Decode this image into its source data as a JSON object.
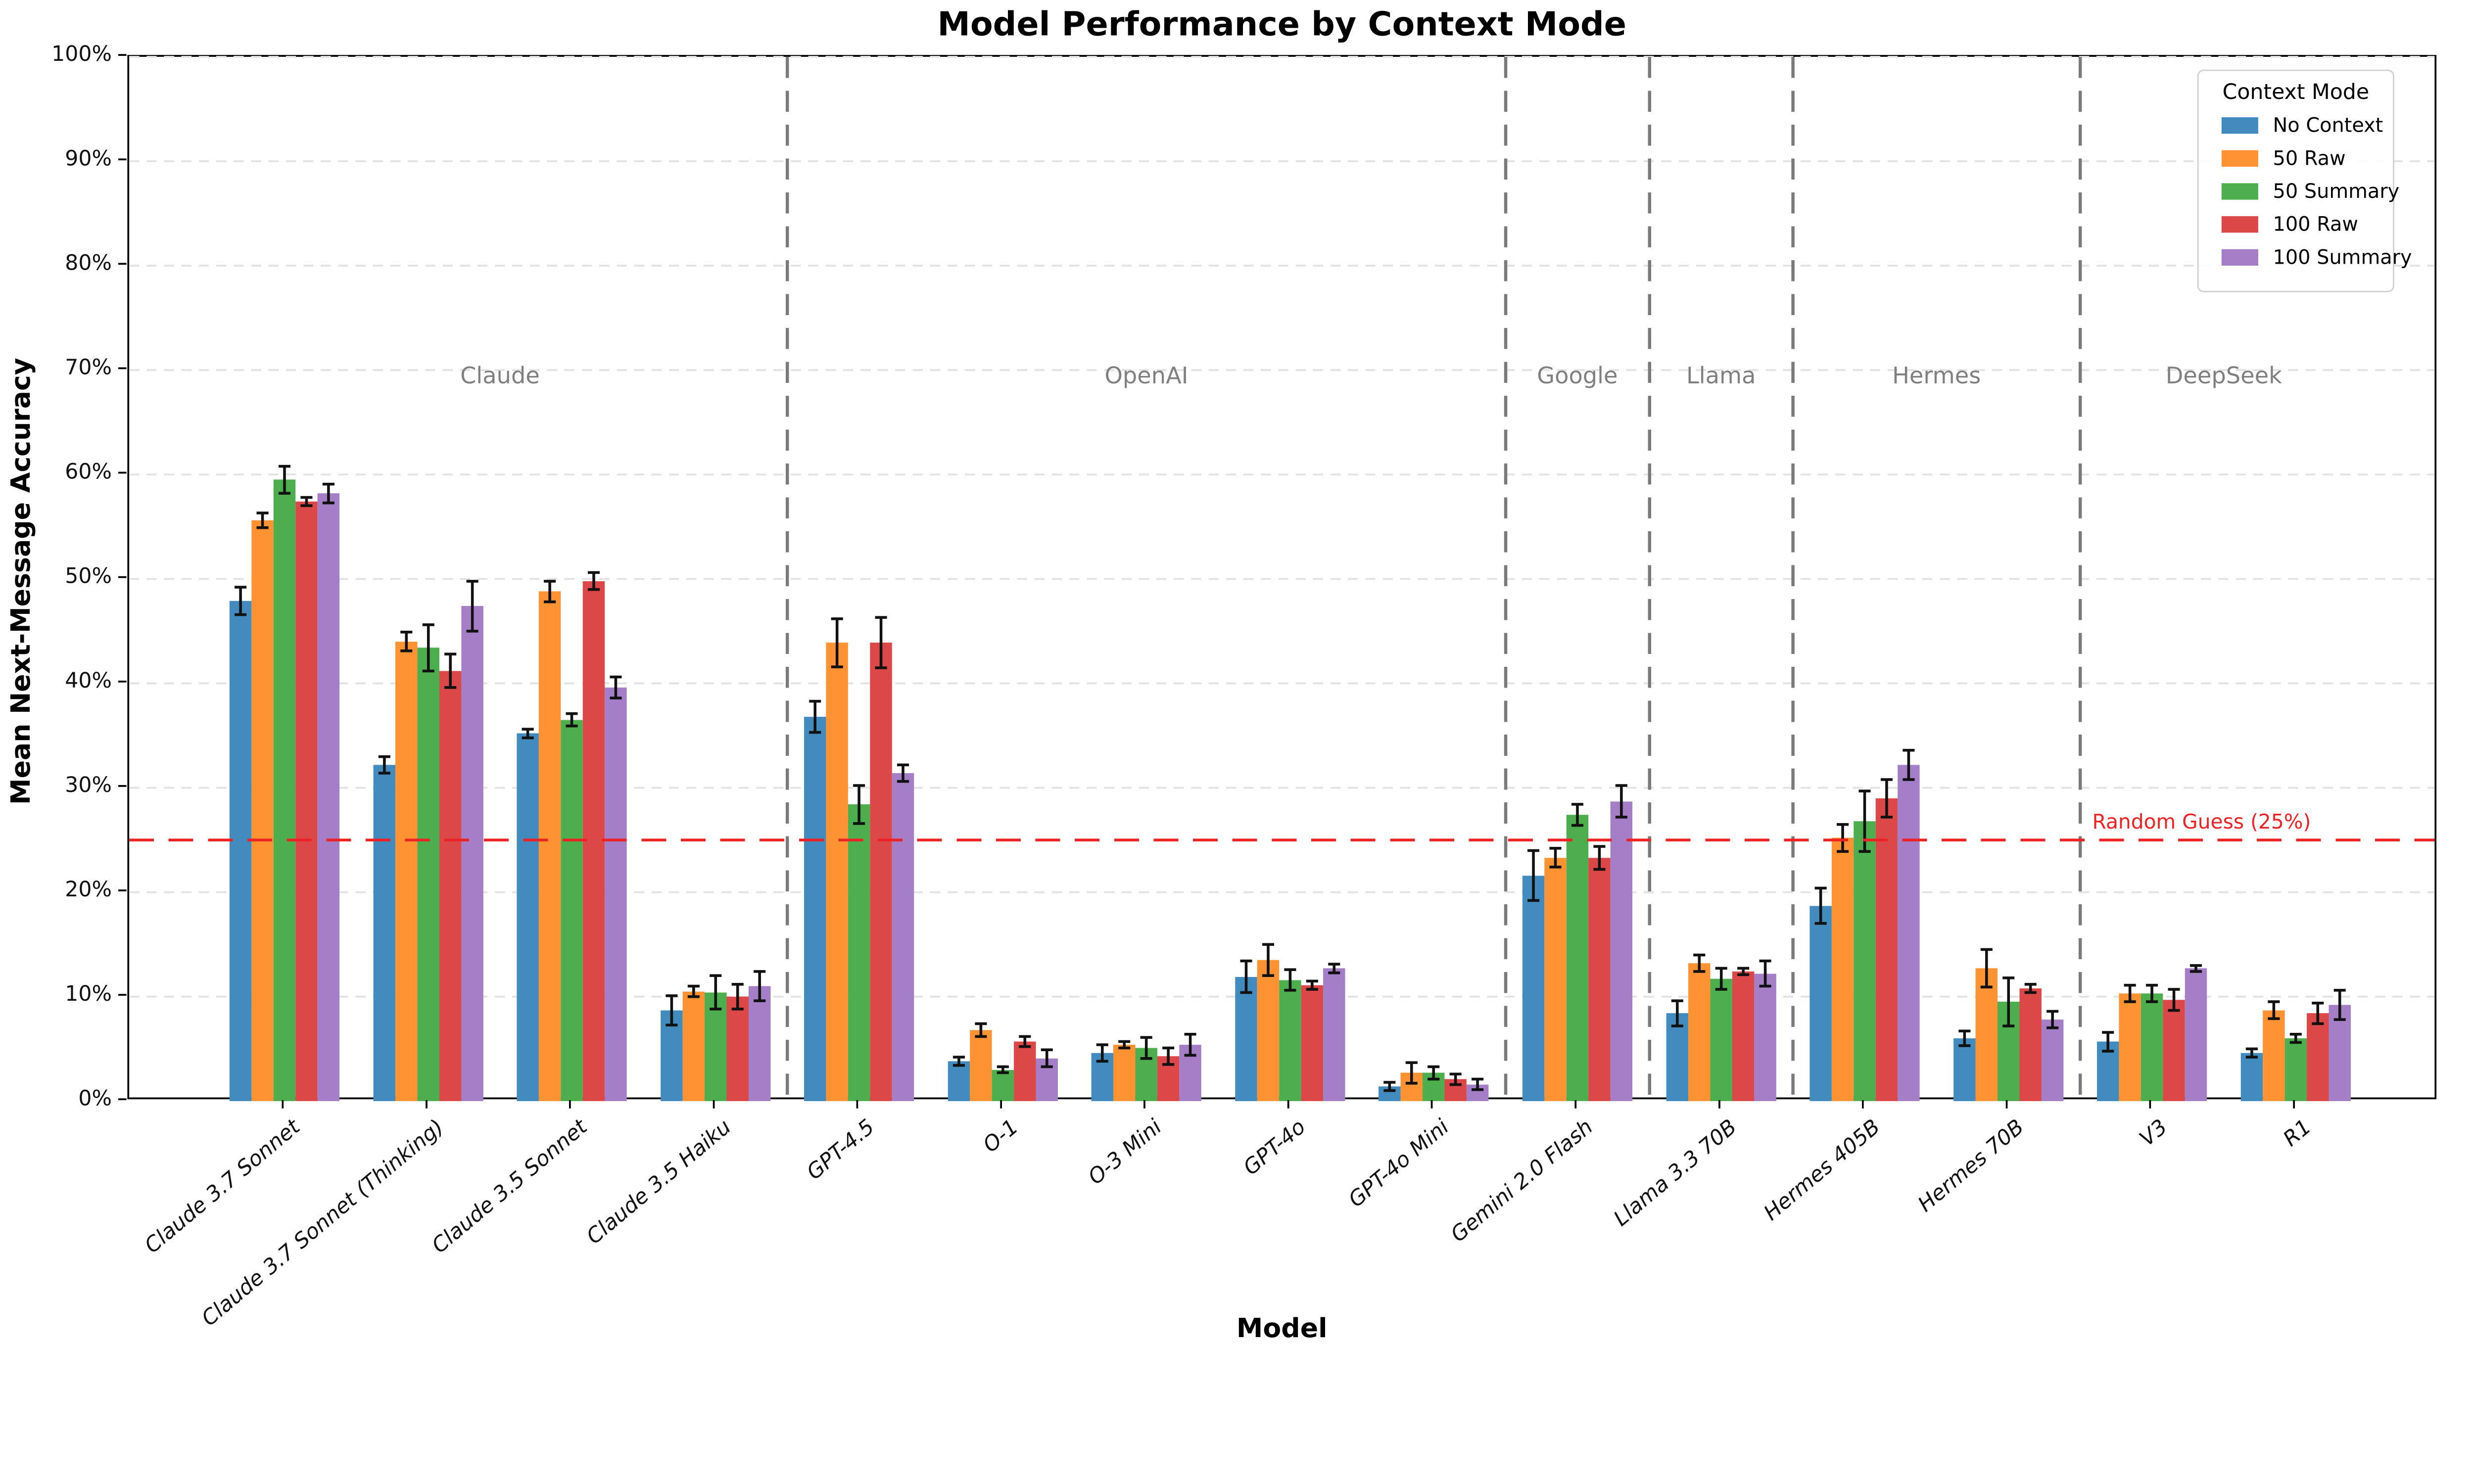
{
  "title": "Model Performance by Context Mode",
  "legend": {
    "title": "Context Mode"
  },
  "axes": {
    "y_label": "Mean Next-Message Accuracy",
    "x_label": "Model",
    "y_tick_labels": [
      "0%",
      "10%",
      "20%",
      "30%",
      "40%",
      "50%",
      "60%",
      "70%",
      "80%",
      "90%",
      "100%"
    ]
  },
  "chart_data": {
    "type": "bar",
    "title": "Model Performance by Context Mode",
    "xlabel": "Model",
    "ylabel": "Mean Next-Message Accuracy",
    "ylim": [
      0,
      100
    ],
    "y_tick_step": 10,
    "grid": true,
    "legend_position": "upper right",
    "categories": [
      "Claude 3.7 Sonnet",
      "Claude 3.7 Sonnet (Thinking)",
      "Claude 3.5 Sonnet",
      "Claude 3.5 Haiku",
      "GPT-4.5",
      "O-1",
      "O-3 Mini",
      "GPT-4o",
      "GPT-4o Mini",
      "Gemini 2.0 Flash",
      "Llama 3.3 70B",
      "Hermes 405B",
      "Hermes 70B",
      "V3",
      "R1"
    ],
    "groups": [
      {
        "label": "Claude",
        "from": 0,
        "to": 3
      },
      {
        "label": "OpenAI",
        "from": 4,
        "to": 8
      },
      {
        "label": "Google",
        "from": 9,
        "to": 9
      },
      {
        "label": "Llama",
        "from": 10,
        "to": 10
      },
      {
        "label": "Hermes",
        "from": 11,
        "to": 12
      },
      {
        "label": "DeepSeek",
        "from": 13,
        "to": 14
      }
    ],
    "group_label_y_value": 69.5,
    "series": [
      {
        "name": "No Context",
        "color": "#418bbf",
        "values": [
          47.9,
          32.2,
          35.2,
          8.7,
          36.8,
          3.8,
          4.6,
          11.9,
          1.4,
          21.6,
          8.4,
          18.7,
          6.0,
          5.7,
          4.6
        ],
        "errors": [
          1.3,
          0.8,
          0.4,
          1.4,
          1.5,
          0.4,
          0.8,
          1.5,
          0.4,
          2.4,
          1.2,
          1.7,
          0.7,
          0.9,
          0.4
        ]
      },
      {
        "name": "50 Raw",
        "color": "#ff9232",
        "values": [
          55.6,
          44.0,
          48.8,
          10.5,
          43.9,
          6.8,
          5.4,
          13.5,
          2.7,
          23.3,
          13.2,
          25.2,
          12.7,
          10.3,
          8.7
        ],
        "errors": [
          0.7,
          0.9,
          1.0,
          0.5,
          2.3,
          0.6,
          0.3,
          1.5,
          1.0,
          0.9,
          0.8,
          1.3,
          1.8,
          0.8,
          0.8
        ]
      },
      {
        "name": "50 Summary",
        "color": "#4cae4c",
        "values": [
          59.5,
          43.4,
          36.5,
          10.4,
          28.4,
          3.0,
          5.1,
          11.6,
          2.7,
          27.4,
          11.7,
          26.8,
          9.5,
          10.3,
          6.0
        ],
        "errors": [
          1.3,
          2.2,
          0.6,
          1.6,
          1.8,
          0.3,
          1.0,
          1.0,
          0.6,
          1.0,
          1.0,
          2.9,
          2.3,
          0.8,
          0.4
        ]
      },
      {
        "name": "100 Raw",
        "color": "#dc4748",
        "values": [
          57.4,
          41.2,
          49.8,
          10.0,
          43.9,
          5.7,
          4.3,
          11.1,
          2.1,
          23.3,
          12.4,
          29.0,
          10.8,
          9.7,
          8.4
        ],
        "errors": [
          0.4,
          1.6,
          0.8,
          1.2,
          2.4,
          0.5,
          0.8,
          0.4,
          0.5,
          1.1,
          0.3,
          1.8,
          0.4,
          1.0,
          1.0
        ]
      },
      {
        "name": "100 Summary",
        "color": "#a47ec7",
        "values": [
          58.2,
          47.4,
          39.6,
          11.0,
          31.4,
          4.1,
          5.4,
          12.7,
          1.6,
          28.7,
          12.2,
          32.2,
          7.8,
          12.7,
          9.2
        ],
        "errors": [
          0.9,
          2.4,
          1.0,
          1.4,
          0.8,
          0.8,
          1.0,
          0.4,
          0.5,
          1.5,
          1.2,
          1.4,
          0.8,
          0.3,
          1.4
        ]
      }
    ],
    "reference_line": {
      "label": "Random Guess (25%)",
      "value": 25,
      "color": "#ed2224"
    }
  }
}
